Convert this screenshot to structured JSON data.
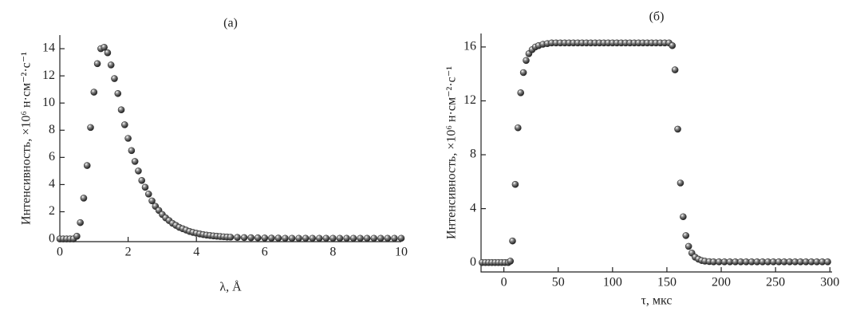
{
  "chart_data": [
    {
      "type": "scatter",
      "title": "(a)",
      "xlabel": "λ, Å",
      "ylabel": "Интенсивность, ×10⁶ н·см⁻²·с⁻¹",
      "x": [
        0,
        0.1,
        0.2,
        0.3,
        0.4,
        0.5,
        0.6,
        0.7,
        0.8,
        0.9,
        1.0,
        1.1,
        1.2,
        1.3,
        1.4,
        1.5,
        1.6,
        1.7,
        1.8,
        1.9,
        2.0,
        2.1,
        2.2,
        2.3,
        2.4,
        2.5,
        2.6,
        2.7,
        2.8,
        2.9,
        3.0,
        3.1,
        3.2,
        3.3,
        3.4,
        3.5,
        3.6,
        3.7,
        3.8,
        3.9,
        4.0,
        4.1,
        4.2,
        4.3,
        4.4,
        4.5,
        4.6,
        4.7,
        4.8,
        4.9,
        5.0,
        5.2,
        5.4,
        5.6,
        5.8,
        6.0,
        6.2,
        6.4,
        6.6,
        6.8,
        7.0,
        7.2,
        7.4,
        7.6,
        7.8,
        8.0,
        8.2,
        8.4,
        8.6,
        8.8,
        9.0,
        9.2,
        9.4,
        9.6,
        9.8,
        10.0
      ],
      "series": [
        {
          "color": "#333333",
          "values": [
            0,
            0,
            0,
            0,
            0,
            0.2,
            1.2,
            3,
            5.4,
            8.2,
            10.8,
            12.9,
            14,
            14.1,
            13.7,
            12.8,
            11.8,
            10.7,
            9.5,
            8.4,
            7.4,
            6.5,
            5.7,
            5.0,
            4.3,
            3.8,
            3.3,
            2.8,
            2.4,
            2.1,
            1.8,
            1.55,
            1.35,
            1.15,
            1.0,
            0.85,
            0.75,
            0.65,
            0.55,
            0.48,
            0.42,
            0.37,
            0.32,
            0.28,
            0.25,
            0.22,
            0.2,
            0.18,
            0.16,
            0.14,
            0.13,
            0.11,
            0.1,
            0.09,
            0.08,
            0.07,
            0.06,
            0.06,
            0.05,
            0.05,
            0.05,
            0.05,
            0.05,
            0.05,
            0.05,
            0.05,
            0.05,
            0.05,
            0.05,
            0.05,
            0.05,
            0.05,
            0.05,
            0.05,
            0.05,
            0.05
          ]
        }
      ],
      "xlim": [
        0,
        10
      ],
      "xticks": [
        0,
        2,
        4,
        6,
        8,
        10
      ],
      "ylim": [
        -0.2,
        15
      ],
      "yticks": [
        0,
        2,
        4,
        6,
        8,
        10,
        12,
        14
      ]
    },
    {
      "type": "scatter",
      "title": "(б)",
      "xlabel": "τ, мкс",
      "ylabel": "Интенсивность, ×10⁶ н·см⁻²·с⁻¹",
      "x": [
        -20,
        -17,
        -14,
        -11,
        -8,
        -5,
        -2,
        1,
        4,
        6,
        8,
        10.5,
        13,
        15.5,
        18,
        20.5,
        23,
        26,
        29,
        32,
        36,
        40,
        44,
        48,
        52,
        56,
        60,
        64,
        68,
        72,
        76,
        80,
        84,
        88,
        92,
        96,
        100,
        104,
        108,
        112,
        116,
        120,
        124,
        128,
        132,
        136,
        140,
        144,
        148,
        152,
        155,
        157.5,
        160,
        162.5,
        165,
        167.5,
        170,
        173,
        176,
        179,
        182,
        185,
        189,
        193,
        198,
        203,
        208,
        213,
        218,
        223,
        228,
        233,
        238,
        243,
        248,
        253,
        258,
        263,
        268,
        273,
        278,
        283,
        288,
        293,
        298
      ],
      "series": [
        {
          "color": "#333333",
          "values": [
            0,
            0,
            0,
            0,
            0,
            0,
            0,
            0,
            0,
            0.1,
            1.6,
            5.8,
            10,
            12.6,
            14.1,
            15,
            15.5,
            15.8,
            16,
            16.1,
            16.2,
            16.25,
            16.3,
            16.3,
            16.3,
            16.3,
            16.3,
            16.3,
            16.3,
            16.3,
            16.3,
            16.3,
            16.3,
            16.3,
            16.3,
            16.3,
            16.3,
            16.3,
            16.3,
            16.3,
            16.3,
            16.3,
            16.3,
            16.3,
            16.3,
            16.3,
            16.3,
            16.3,
            16.3,
            16.3,
            16.1,
            14.3,
            9.9,
            5.9,
            3.4,
            2.0,
            1.2,
            0.7,
            0.4,
            0.25,
            0.15,
            0.1,
            0.07,
            0.05,
            0.05,
            0.05,
            0.05,
            0.05,
            0.05,
            0.05,
            0.05,
            0.05,
            0.05,
            0.05,
            0.05,
            0.05,
            0.05,
            0.05,
            0.05,
            0.05,
            0.05,
            0.05,
            0.05,
            0.05,
            0.05
          ]
        }
      ],
      "xlim": [
        -21,
        302
      ],
      "xticks": [
        0,
        50,
        100,
        150,
        200,
        250,
        300
      ],
      "ylim": [
        -0.7,
        17
      ],
      "yticks": [
        0,
        4,
        8,
        12,
        16
      ]
    }
  ]
}
